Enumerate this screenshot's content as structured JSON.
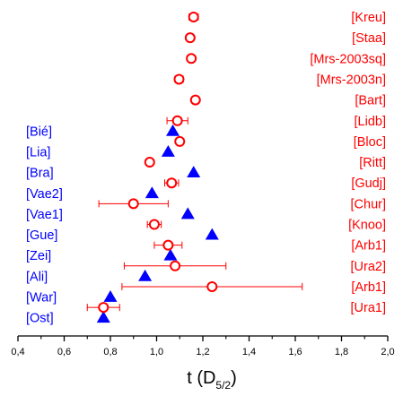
{
  "chart_data": {
    "type": "scatter",
    "title": "",
    "xlabel": {
      "main": "t (D",
      "subscript": "5/2",
      "close": ")"
    },
    "ylabel": "",
    "xlim": [
      0.4,
      2.0
    ],
    "xticks": [
      "0,4",
      "0,6",
      "0,8",
      "1,0",
      "1,2",
      "1,4",
      "1,6",
      "1,8",
      "2,0"
    ],
    "xtick_values": [
      0.4,
      0.6,
      0.8,
      1.0,
      1.2,
      1.4,
      1.6,
      1.8,
      2.0
    ],
    "grid": false,
    "colors": {
      "red_series": "#ff0000",
      "blue_series": "#0000ff",
      "axis": "#000000"
    },
    "red_labels": [
      "[Kreu]",
      "[Staa]",
      "[Mrs-2003sq]",
      "[Mrs-2003n]",
      "[Bart]",
      "[Lidb]",
      "[Bloc]",
      "[Ritt]",
      "[Gudj]",
      "[Chur]",
      "[Knoo]",
      "[Arb1]",
      "[Ura2]",
      "[Arb1]",
      "[Ura1]"
    ],
    "blue_labels": [
      "[Bié]",
      "[Lia]",
      "[Bra]",
      "[Vae2]",
      "[Vae1]",
      "[Gue]",
      "[Zei]",
      "[Ali]",
      "[War]",
      "[Ost]"
    ],
    "series": [
      {
        "marker": "open-circle",
        "color": "#ff0000",
        "points": [
          {
            "x": 1.16,
            "err": 0.02
          },
          {
            "x": 1.145,
            "err": 0.0
          },
          {
            "x": 1.15,
            "err": 0.0
          },
          {
            "x": 1.097,
            "err": 0.018
          },
          {
            "x": 1.168,
            "err": 0.01
          },
          {
            "x": 1.09,
            "err": 0.045
          },
          {
            "x": 1.1,
            "err": 0.0
          },
          {
            "x": 0.97,
            "err": 0.0
          },
          {
            "x": 1.065,
            "err": 0.03
          },
          {
            "x": 0.9,
            "err": 0.15
          },
          {
            "x": 0.99,
            "err": 0.03
          },
          {
            "x": 1.05,
            "err": 0.06
          },
          {
            "x": 1.08,
            "err": 0.22
          },
          {
            "x": 1.24,
            "err": 0.39
          },
          {
            "x": 0.77,
            "err": 0.07
          }
        ]
      },
      {
        "marker": "filled-triangle",
        "color": "#0000ff",
        "points": [
          {
            "x": 1.07,
            "row": 5.5
          },
          {
            "x": 1.05,
            "row": 6.5
          },
          {
            "x": 1.16,
            "row": 7.5
          },
          {
            "x": 0.98,
            "row": 8.5
          },
          {
            "x": 1.135,
            "row": 9.5
          },
          {
            "x": 1.24,
            "row": 10.5
          },
          {
            "x": 1.06,
            "row": 11.5
          },
          {
            "x": 0.95,
            "row": 12.5
          },
          {
            "x": 0.8,
            "row": 13.5
          },
          {
            "x": 0.77,
            "row": 14.5
          }
        ]
      }
    ]
  }
}
